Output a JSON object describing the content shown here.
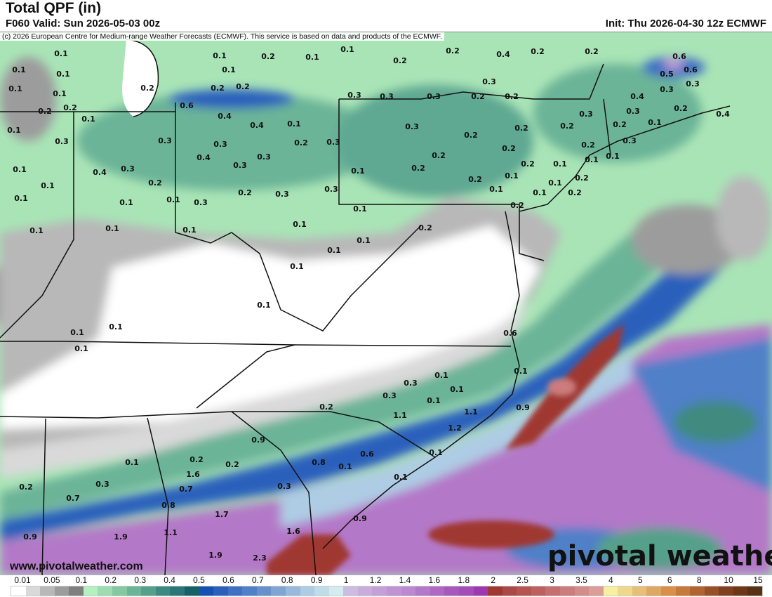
{
  "header": {
    "title": "Total QPF (in)",
    "valid": "F060 Valid: Sun 2026-05-03 00z",
    "init": "Init: Thu 2026-04-30 12z ECMWF",
    "copyright": "(c) 2026 European Centre for Medium-range Weather Forecasts (ECMWF). This service is based on data and products of the ECMWF."
  },
  "footer": {
    "url": "www.pivotalweather.com",
    "logo": "pivotal weather"
  },
  "colorbar": {
    "labels": [
      "0.01",
      "0.05",
      "0.1",
      "0.2",
      "0.3",
      "0.4",
      "0.5",
      "0.6",
      "0.7",
      "0.8",
      "0.9",
      "1",
      "1.2",
      "1.4",
      "1.6",
      "1.8",
      "2",
      "2.5",
      "3",
      "3.5",
      "4",
      "5",
      "6",
      "8",
      "10",
      "15"
    ],
    "colors": [
      "#ffffff",
      "#d9d9d9",
      "#b8b8b8",
      "#9c9c9c",
      "#7f7f7f",
      "#b5f0c0",
      "#9cdcb0",
      "#86c8a2",
      "#6cb498",
      "#55a08a",
      "#3f8a80",
      "#2a7676",
      "#186068",
      "#1550b4",
      "#2a60bc",
      "#3f70c4",
      "#5080c8",
      "#6890cc",
      "#80a4d4",
      "#98b8dc",
      "#aecce4",
      "#c0dce8",
      "#d4ecf0",
      "#ccbce0",
      "#c8acdc",
      "#c4a0d8",
      "#c094d4",
      "#bc88d0",
      "#b478c8",
      "#b068c4",
      "#a858bc",
      "#a44cb8",
      "#9c38b0",
      "#a03830",
      "#ac4848",
      "#b45550",
      "#bc6060",
      "#c47070",
      "#cc7c7c",
      "#d48c88",
      "#dc9c98",
      "#f6f0a0",
      "#eed88c",
      "#e6c078",
      "#dea862",
      "#d89048",
      "#c87838",
      "#b06430",
      "#985028",
      "#804020",
      "#6c3818",
      "#583014"
    ]
  },
  "map_labels": [
    "0.1",
    "0.1",
    "0.1",
    "0.1",
    "0.1",
    "0.2",
    "0.2",
    "0.1",
    "0.1",
    "0.3",
    "0.1",
    "0.4",
    "0.3",
    "0.1",
    "0.2",
    "0.1",
    "0.1",
    "0.1",
    "0.3",
    "0.1",
    "0.1",
    "0.1",
    "0.1",
    "0.1",
    "0.2",
    "0.1",
    "0.1",
    "0.2",
    "0.2",
    "0.2",
    "0.6",
    "0.4",
    "0.4",
    "0.1",
    "0.3",
    "0.3",
    "0.2",
    "0.3",
    "0.4",
    "0.3",
    "0.3",
    "0.2",
    "0.3",
    "0.3",
    "0.2",
    "0.2",
    "0.4",
    "0.2",
    "0.2",
    "0.6",
    "0.5",
    "0.6",
    "0.3",
    "0.3",
    "0.4",
    "0.3",
    "0.3",
    "0.3",
    "0.2",
    "0.2",
    "0.3",
    "0.3",
    "0.3",
    "0.2",
    "0.1",
    "0.2",
    "0.4",
    "0.3",
    "0.2",
    "0.2",
    "0.2",
    "0.2",
    "0.2",
    "0.2",
    "0.2",
    "0.1",
    "0.2",
    "0.3",
    "0.1",
    "0.1",
    "0.2",
    "0.1",
    "0.2",
    "0.1",
    "0.1",
    "0.1",
    "0.1",
    "0.2",
    "0.1",
    "0.2",
    "0.1",
    "0.2",
    "0.1",
    "0.1",
    "0.1",
    "0.1",
    "0.1",
    "0.1",
    "0.1",
    "0.6",
    "0.1",
    "0.1",
    "0.3",
    "0.1",
    "0.3",
    "0.1",
    "0.2",
    "1.1",
    "1.1",
    "0.9",
    "1.2",
    "0.1",
    "0.9",
    "0.6",
    "0.8",
    "0.1",
    "0.1",
    "0.2",
    "0.2",
    "1.6",
    "0.1",
    "0.2",
    "0.3",
    "0.7",
    "0.3",
    "0.7",
    "0.8",
    "1.7",
    "0.9",
    "1.1",
    "0.9",
    "1.9",
    "1.6",
    "1.9",
    "2.3"
  ]
}
